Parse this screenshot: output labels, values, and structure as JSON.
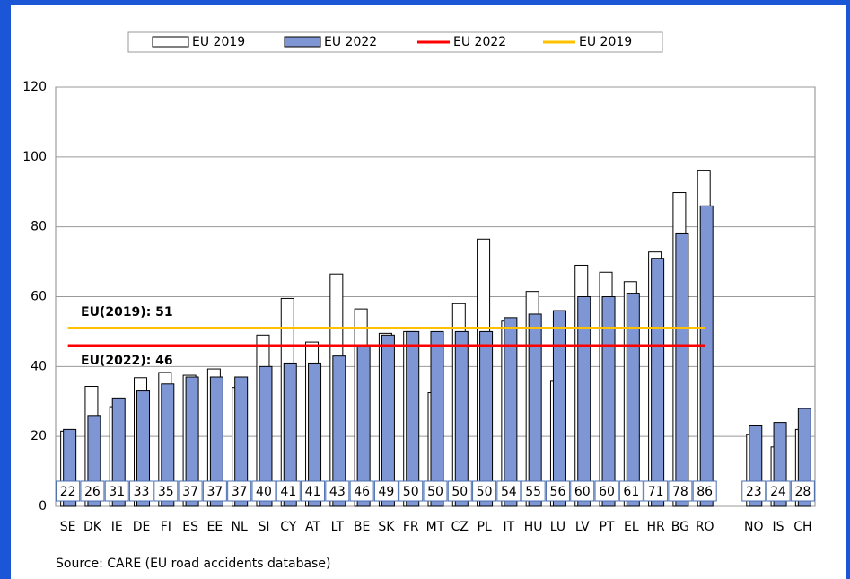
{
  "chart_data": {
    "type": "bar",
    "categories": [
      "SE",
      "DK",
      "IE",
      "DE",
      "FI",
      "ES",
      "EE",
      "NL",
      "SI",
      "CY",
      "AT",
      "LT",
      "BE",
      "SK",
      "FR",
      "MT",
      "CZ",
      "PL",
      "IT",
      "HU",
      "LU",
      "LV",
      "PT",
      "EL",
      "HR",
      "BG",
      "RO",
      null,
      "NO",
      "IS",
      "CH"
    ],
    "series": [
      {
        "name": "EU 2019",
        "color": "#ffffff",
        "values": [
          21.5,
          34.3,
          28.5,
          36.8,
          38.3,
          37.5,
          39.3,
          34,
          49,
          59.5,
          47,
          66.5,
          56.5,
          49.5,
          50,
          32.5,
          58,
          76.5,
          53,
          61.5,
          36,
          69,
          67,
          64.3,
          72.8,
          89.8,
          96.2,
          null,
          20.5,
          17,
          22
        ]
      },
      {
        "name": "EU 2022",
        "color": "#7f96d4",
        "values": [
          22,
          26,
          31,
          33,
          35,
          37,
          37,
          37,
          40,
          41,
          41,
          43,
          46,
          49,
          50,
          50,
          50,
          50,
          54,
          55,
          56,
          60,
          60,
          61,
          71,
          78,
          86,
          null,
          23,
          24,
          28
        ]
      }
    ],
    "lines": [
      {
        "name": "EU 2022",
        "color": "#ff0000",
        "value": 46,
        "label": "EU(2022): 46"
      },
      {
        "name": "EU 2019",
        "color": "#ffc000",
        "value": 51,
        "label": "EU(2019): 51"
      }
    ],
    "ylim": [
      0,
      120
    ],
    "yticks": [
      0,
      20,
      40,
      60,
      80,
      100,
      120
    ],
    "grid": true,
    "source": "Source: CARE (EU road accidents database)"
  }
}
